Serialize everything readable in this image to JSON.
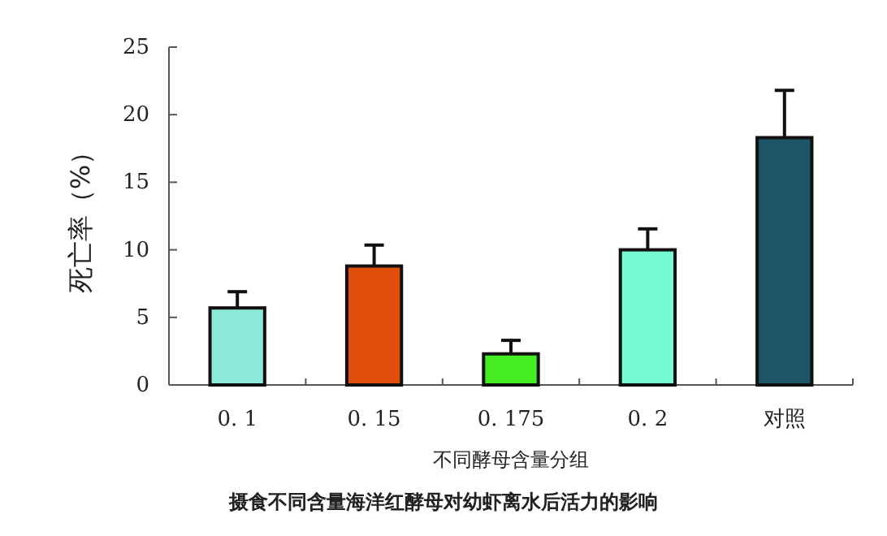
{
  "chart_data": {
    "type": "bar",
    "xlabel": "不同酵母含量分组",
    "ylabel": "死亡率（%）",
    "categories": [
      "0. 1",
      "0. 15",
      "0. 175",
      "0. 2",
      "对照"
    ],
    "values": [
      5.7,
      8.8,
      2.3,
      10.0,
      18.3
    ],
    "errors": [
      1.2,
      1.55,
      1.0,
      1.55,
      3.5
    ],
    "colors": [
      "#8ce8d8",
      "#e04e0a",
      "#44ee22",
      "#76fcd4",
      "#1e5468"
    ],
    "ylim": [
      0,
      25
    ],
    "yticks": [
      0,
      5,
      10,
      15,
      20,
      25
    ],
    "annotations": [
      "摄食不同含量海洋红酵母对幼虾离水后活力的影响"
    ]
  }
}
